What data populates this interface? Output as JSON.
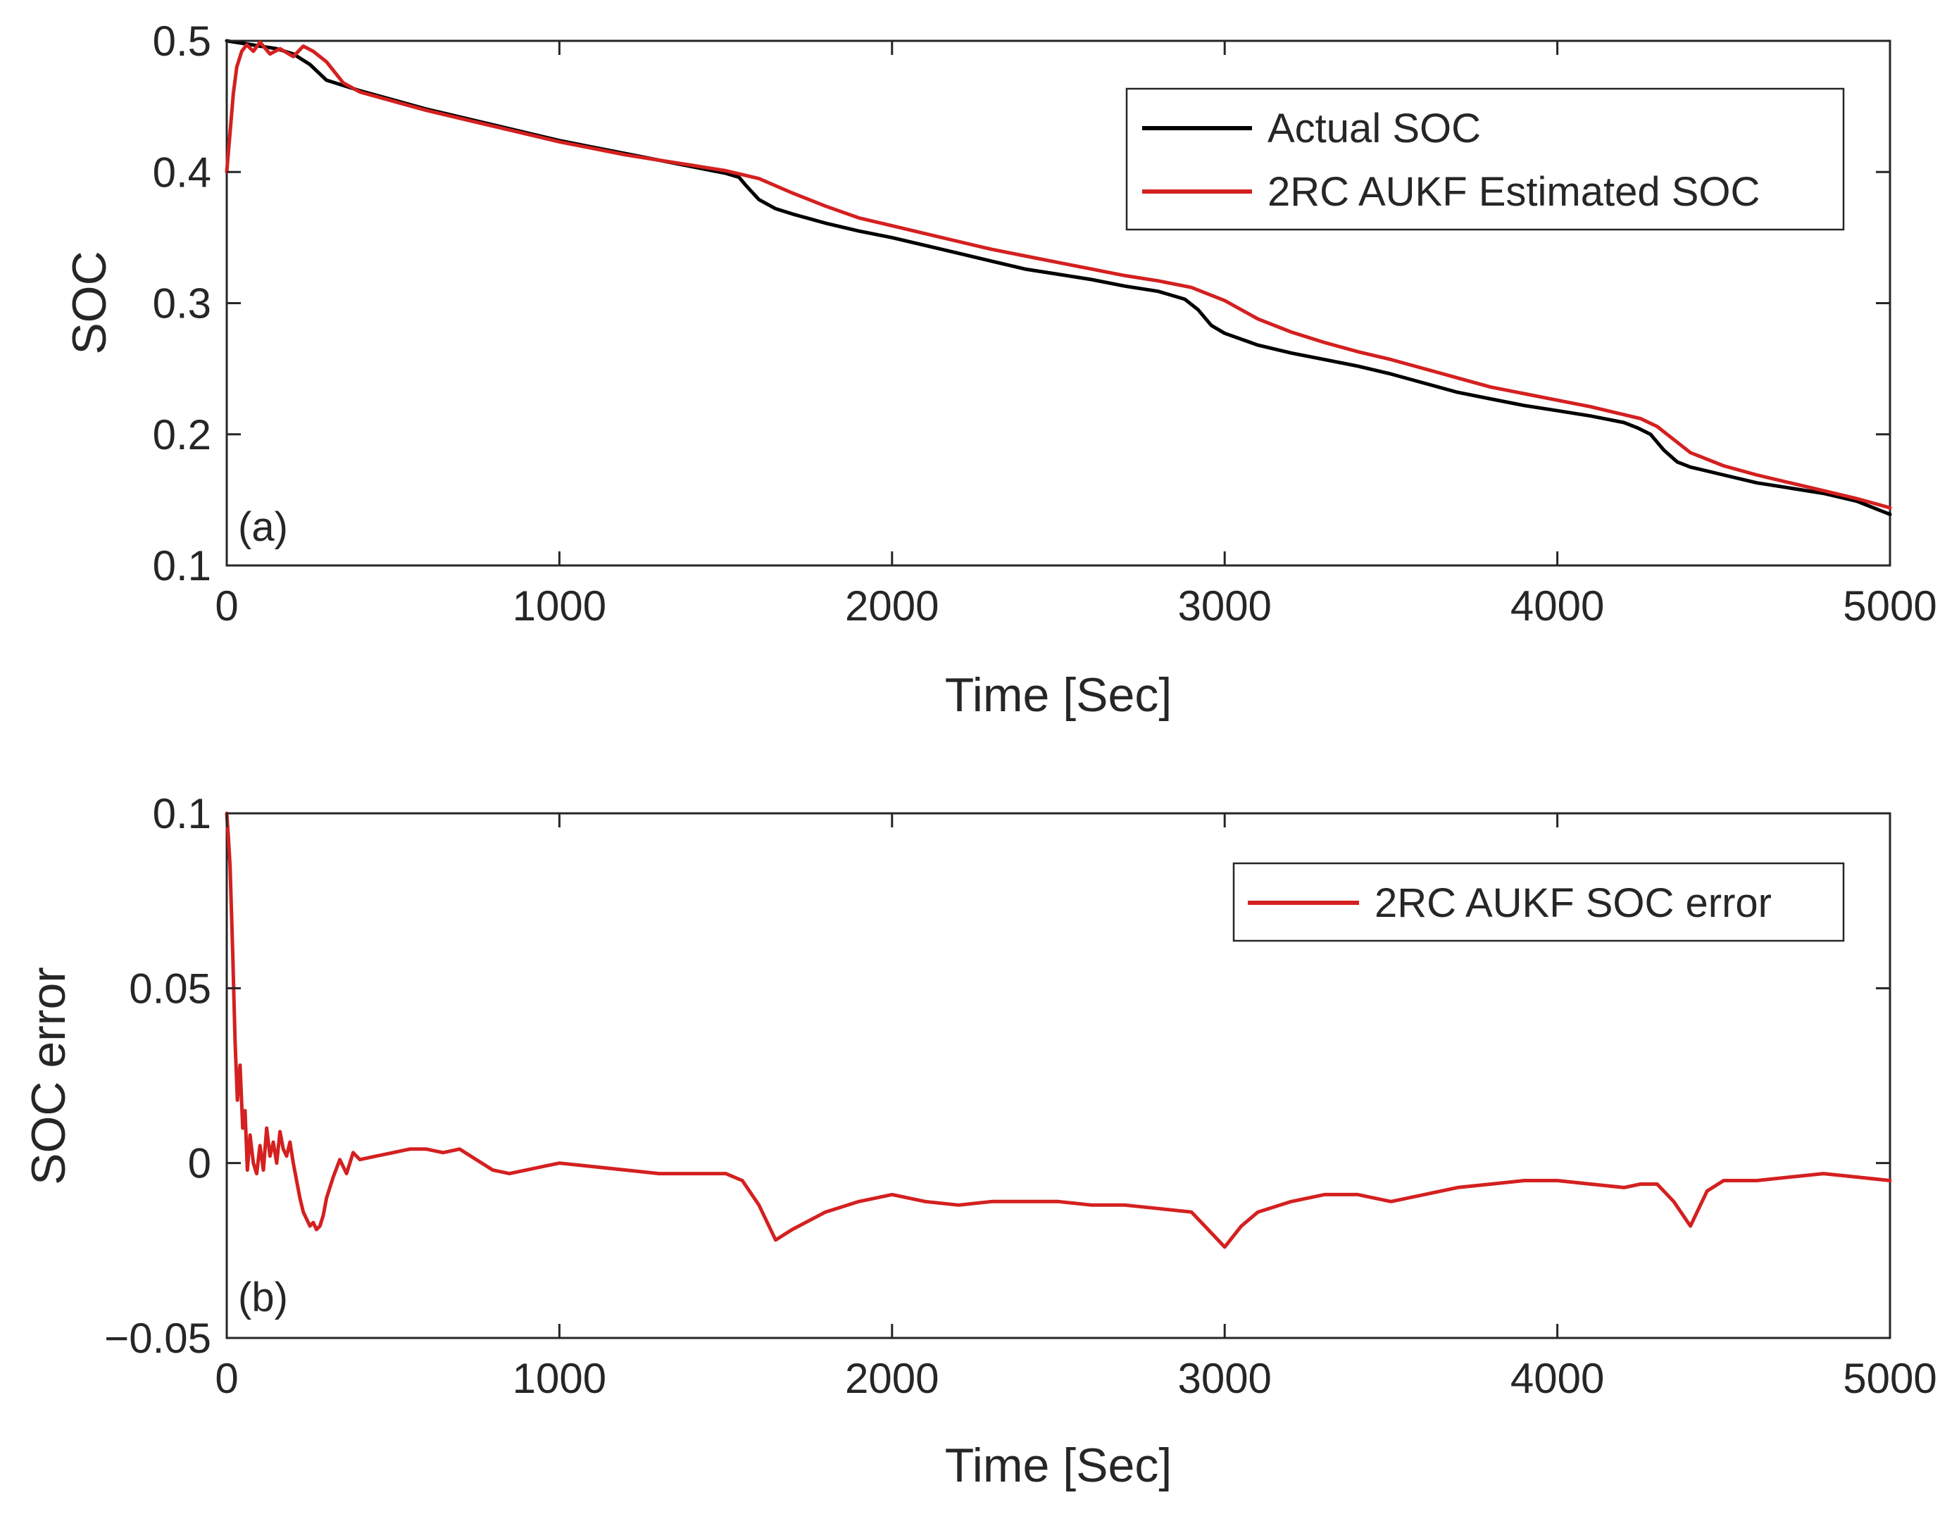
{
  "chart_data": [
    {
      "type": "line",
      "panel_label": "(a)",
      "title": "",
      "xlabel": "Time [Sec]",
      "ylabel": "SOC",
      "xlim": [
        0,
        5000
      ],
      "ylim": [
        0.1,
        0.5
      ],
      "xticks": [
        0,
        1000,
        2000,
        3000,
        4000,
        5000
      ],
      "xtick_labels": [
        "0",
        "1000",
        "2000",
        "3000",
        "4000",
        "5000"
      ],
      "yticks": [
        0.1,
        0.2,
        0.3,
        0.4,
        0.5
      ],
      "ytick_labels": [
        "0.1",
        "0.2",
        "0.3",
        "0.4",
        "0.5"
      ],
      "grid": false,
      "legend_position": "top-right",
      "series": [
        {
          "name": "Actual SOC",
          "color": "#000000",
          "x": [
            0,
            50,
            100,
            150,
            200,
            250,
            300,
            350,
            400,
            500,
            600,
            700,
            800,
            900,
            1000,
            1100,
            1200,
            1300,
            1400,
            1500,
            1540,
            1560,
            1600,
            1650,
            1700,
            1800,
            1900,
            2000,
            2100,
            2200,
            2300,
            2400,
            2500,
            2600,
            2700,
            2800,
            2880,
            2920,
            2960,
            3000,
            3100,
            3200,
            3300,
            3400,
            3500,
            3600,
            3700,
            3800,
            3900,
            4000,
            4100,
            4200,
            4240,
            4280,
            4320,
            4360,
            4400,
            4500,
            4600,
            4700,
            4800,
            4900,
            5000
          ],
          "y": [
            0.5,
            0.498,
            0.496,
            0.494,
            0.49,
            0.482,
            0.47,
            0.466,
            0.462,
            0.455,
            0.448,
            0.442,
            0.436,
            0.43,
            0.424,
            0.419,
            0.414,
            0.409,
            0.404,
            0.399,
            0.396,
            0.39,
            0.379,
            0.372,
            0.368,
            0.361,
            0.355,
            0.35,
            0.344,
            0.338,
            0.332,
            0.326,
            0.322,
            0.318,
            0.313,
            0.309,
            0.303,
            0.295,
            0.283,
            0.277,
            0.268,
            0.262,
            0.257,
            0.252,
            0.246,
            0.239,
            0.232,
            0.227,
            0.222,
            0.218,
            0.214,
            0.209,
            0.205,
            0.2,
            0.188,
            0.179,
            0.175,
            0.169,
            0.163,
            0.159,
            0.155,
            0.149,
            0.139
          ]
        },
        {
          "name": "2RC AUKF Estimated SOC",
          "color": "#d42020",
          "x": [
            0,
            10,
            20,
            30,
            45,
            60,
            80,
            100,
            130,
            160,
            200,
            230,
            260,
            300,
            350,
            400,
            500,
            600,
            700,
            800,
            900,
            1000,
            1100,
            1200,
            1300,
            1400,
            1500,
            1600,
            1700,
            1800,
            1900,
            2000,
            2100,
            2200,
            2300,
            2400,
            2500,
            2600,
            2700,
            2800,
            2900,
            3000,
            3100,
            3200,
            3300,
            3400,
            3500,
            3600,
            3700,
            3800,
            3900,
            4000,
            4100,
            4200,
            4250,
            4300,
            4350,
            4400,
            4500,
            4600,
            4700,
            4800,
            4900,
            5000
          ],
          "y": [
            0.4,
            0.43,
            0.46,
            0.48,
            0.492,
            0.497,
            0.492,
            0.499,
            0.49,
            0.494,
            0.488,
            0.496,
            0.492,
            0.484,
            0.468,
            0.461,
            0.454,
            0.447,
            0.441,
            0.435,
            0.429,
            0.423,
            0.418,
            0.413,
            0.409,
            0.405,
            0.401,
            0.395,
            0.384,
            0.374,
            0.365,
            0.359,
            0.353,
            0.347,
            0.341,
            0.336,
            0.331,
            0.326,
            0.321,
            0.317,
            0.312,
            0.302,
            0.288,
            0.278,
            0.27,
            0.263,
            0.257,
            0.25,
            0.243,
            0.236,
            0.231,
            0.226,
            0.221,
            0.215,
            0.212,
            0.206,
            0.196,
            0.186,
            0.176,
            0.169,
            0.163,
            0.157,
            0.151,
            0.144
          ]
        }
      ]
    },
    {
      "type": "line",
      "panel_label": "(b)",
      "title": "",
      "xlabel": "Time [Sec]",
      "ylabel": "SOC error",
      "xlim": [
        0,
        5000
      ],
      "ylim": [
        -0.05,
        0.1
      ],
      "xticks": [
        0,
        1000,
        2000,
        3000,
        4000,
        5000
      ],
      "xtick_labels": [
        "0",
        "1000",
        "2000",
        "3000",
        "4000",
        "5000"
      ],
      "yticks": [
        -0.05,
        0,
        0.05,
        0.1
      ],
      "ytick_labels": [
        "−0.05",
        "0",
        "0.05",
        "0.1"
      ],
      "grid": false,
      "legend_position": "top-right",
      "series": [
        {
          "name": "2RC AUKF SOC error",
          "color": "#d42020",
          "x": [
            0,
            5,
            10,
            18,
            25,
            32,
            40,
            48,
            55,
            62,
            70,
            80,
            90,
            100,
            110,
            120,
            130,
            140,
            150,
            160,
            170,
            180,
            190,
            200,
            210,
            220,
            230,
            240,
            250,
            260,
            270,
            280,
            290,
            300,
            320,
            340,
            360,
            380,
            400,
            450,
            500,
            550,
            600,
            650,
            700,
            750,
            800,
            850,
            900,
            950,
            1000,
            1100,
            1200,
            1300,
            1400,
            1500,
            1550,
            1600,
            1650,
            1700,
            1800,
            1900,
            2000,
            2100,
            2200,
            2300,
            2400,
            2500,
            2600,
            2700,
            2800,
            2900,
            2950,
            3000,
            3050,
            3100,
            3200,
            3300,
            3400,
            3500,
            3600,
            3700,
            3800,
            3900,
            4000,
            4100,
            4200,
            4250,
            4300,
            4350,
            4400,
            4450,
            4500,
            4600,
            4700,
            4800,
            4900,
            5000
          ],
          "y": [
            0.1,
            0.093,
            0.085,
            0.06,
            0.035,
            0.018,
            0.028,
            0.01,
            0.015,
            -0.002,
            0.008,
            0.0,
            -0.003,
            0.005,
            -0.002,
            0.01,
            0.002,
            0.006,
            0.0,
            0.009,
            0.004,
            0.002,
            0.006,
            0.0,
            -0.005,
            -0.01,
            -0.014,
            -0.016,
            -0.018,
            -0.017,
            -0.019,
            -0.018,
            -0.015,
            -0.01,
            -0.004,
            0.001,
            -0.003,
            0.003,
            0.001,
            0.002,
            0.003,
            0.004,
            0.004,
            0.003,
            0.004,
            0.001,
            -0.002,
            -0.003,
            -0.002,
            -0.001,
            0.0,
            -0.001,
            -0.002,
            -0.003,
            -0.003,
            -0.003,
            -0.005,
            -0.012,
            -0.022,
            -0.019,
            -0.014,
            -0.011,
            -0.009,
            -0.011,
            -0.012,
            -0.011,
            -0.011,
            -0.011,
            -0.012,
            -0.012,
            -0.013,
            -0.014,
            -0.019,
            -0.024,
            -0.018,
            -0.014,
            -0.011,
            -0.009,
            -0.009,
            -0.011,
            -0.009,
            -0.007,
            -0.006,
            -0.005,
            -0.005,
            -0.006,
            -0.007,
            -0.006,
            -0.006,
            -0.011,
            -0.018,
            -0.008,
            -0.005,
            -0.005,
            -0.004,
            -0.003,
            -0.004,
            -0.005
          ]
        }
      ]
    }
  ]
}
